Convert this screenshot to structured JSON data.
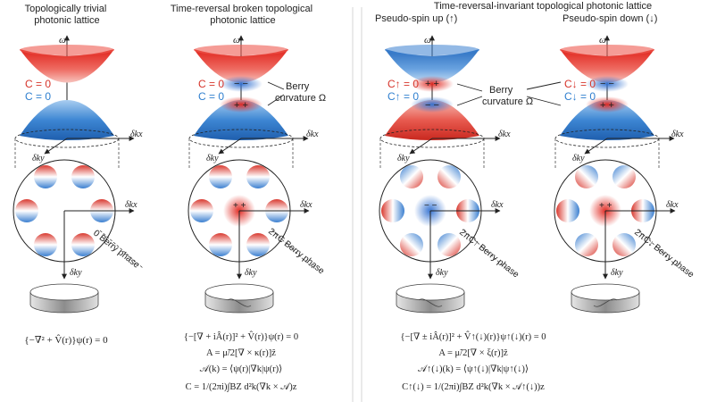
{
  "panels": [
    {
      "title_lines": [
        "Topologically trivial",
        "photonic lattice"
      ],
      "c_top": "C = 0",
      "c_bottom": "C = 0",
      "berry_label_lines": [],
      "phase_label": "0 Berry phase",
      "equations": [
        "{−∇² + V̂(r)}ψ(r) = 0"
      ]
    },
    {
      "title_lines": [
        "Time-reversal broken topological",
        "photonic lattice"
      ],
      "c_top": "C = 0",
      "c_bottom": "C = 0",
      "berry_label_lines": [
        "Berry",
        "curvature Ω"
      ],
      "phase_label": "2πC Berry phase",
      "equations": [
        "{−[∇ + iÂ(r)]² + V̂(r)}ψ(r) = 0",
        "A = μ̃/2[∇ × κ(r)]ẑ",
        "𝒜(k) = ⟨ψ(r)|∇k|ψ(r)⟩",
        "C = 1/(2πi)∫BZ d²k(∇k × 𝒜)z"
      ]
    },
    {
      "shared_title": "Time-reversal-invariant topological photonic lattice",
      "title_lines": [
        "Pseudo-spin up (↑)"
      ],
      "c_top": "C↑ = 0",
      "c_bottom": "C↑ = 0",
      "berry_label_lines": [
        "Berry",
        "curvature Ω"
      ],
      "phase_label": "2πC↑ Berry phase",
      "equations": [
        "{−[∇ ± iÂ(r)]² + V̂↑(↓)(r)}ψ↑(↓)(r) = 0",
        "A = μ̃/2[∇ × ξ(r)]ẑ",
        "𝒜↑(↓)(k) = ⟨ψ↑(↓)|∇k|ψ↑(↓)⟩",
        "C↑(↓) = 1/(2πi)∫BZ d²k(∇k × 𝒜↑(↓))z"
      ]
    },
    {
      "title_lines": [
        "Pseudo-spin down (↓)"
      ],
      "c_top": "C↓ = 0",
      "c_bottom": "C↓ = 0",
      "berry_label_lines": [],
      "phase_label": "2πC↓ Berry phase",
      "equations": []
    }
  ],
  "axes": {
    "omega": "ω",
    "dkx": "δkx",
    "dky": "δky"
  },
  "colors": {
    "red": "#d6342a",
    "blue": "#2f7fcf",
    "grey": "#9a9a9a"
  }
}
